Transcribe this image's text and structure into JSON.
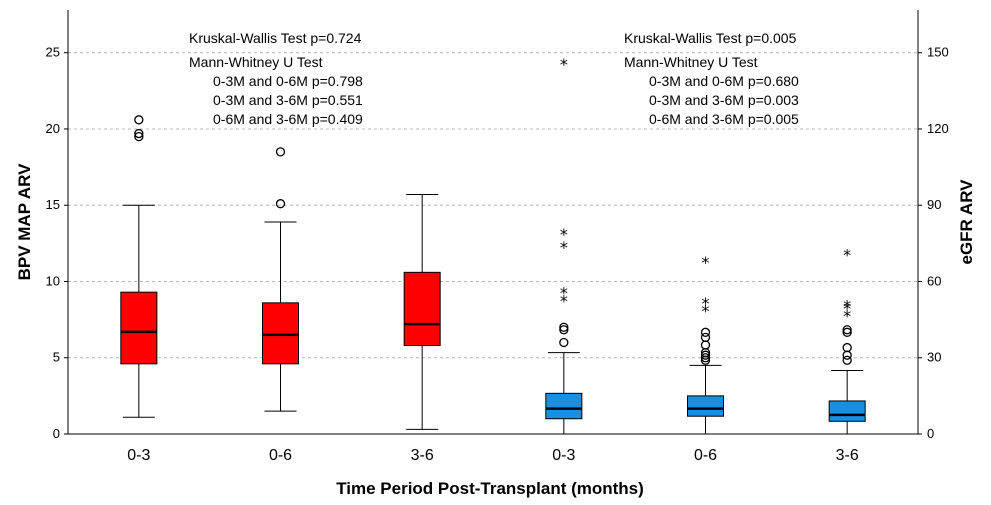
{
  "chart_data": {
    "type": "box",
    "xlabel": "Time Period Post-Transplant (months)",
    "ylabel_left": "BPV MAP ARV",
    "ylabel_right": "eGFR ARV",
    "ylim_left": [
      0,
      27.8
    ],
    "yticks_left": [
      0,
      5,
      10,
      15,
      20,
      25
    ],
    "ylim_right": [
      0,
      166.8
    ],
    "yticks_right": [
      0,
      30,
      60,
      90,
      120,
      150
    ],
    "grid": "horizontal-dashed",
    "categories": [
      "0-3",
      "0-6",
      "3-6",
      "0-3",
      "0-6",
      "3-6"
    ],
    "series": [
      {
        "axis": "left",
        "color": "#ff0000",
        "boxes": [
          {
            "category": "0-3",
            "min": 1.1,
            "q1": 4.6,
            "median": 6.7,
            "q3": 9.3,
            "max": 15.0,
            "outliers": [
              19.5,
              19.7,
              20.6
            ],
            "extremes": []
          },
          {
            "category": "0-6",
            "min": 1.5,
            "q1": 4.6,
            "median": 6.5,
            "q3": 8.6,
            "max": 13.9,
            "outliers": [
              15.1,
              18.5
            ],
            "extremes": []
          },
          {
            "category": "3-6",
            "min": 0.3,
            "q1": 5.8,
            "median": 7.2,
            "q3": 10.6,
            "max": 15.7,
            "outliers": [],
            "extremes": []
          }
        ]
      },
      {
        "axis": "right",
        "color": "#1a8fe0",
        "boxes": [
          {
            "category": "0-3",
            "min": 0,
            "q1": 6.0,
            "median": 10.0,
            "q3": 16.0,
            "max": 32.0,
            "outliers": [
              36,
              41,
              42
            ],
            "extremes": [
              53,
              56,
              74,
              79,
              146
            ]
          },
          {
            "category": "0-6",
            "min": 0,
            "q1": 7.0,
            "median": 10.0,
            "q3": 15.0,
            "max": 27.0,
            "outliers": [
              29,
              30,
              31,
              32,
              35,
              38,
              40
            ],
            "extremes": [
              49,
              52,
              68
            ]
          },
          {
            "category": "3-6",
            "min": 0,
            "q1": 5.0,
            "median": 7.5,
            "q3": 13.0,
            "max": 25.0,
            "outliers": [
              29,
              31,
              34,
              40,
              41
            ],
            "extremes": [
              47,
              50,
              51,
              71
            ]
          }
        ]
      }
    ],
    "annotations": {
      "left": [
        "Kruskal-Wallis Test  p=0.724",
        "Mann-Whitney U Test",
        "0-3M and 0-6M p=0.798",
        "0-3M and 3-6M p=0.551",
        "0-6M and 3-6M p=0.409"
      ],
      "right": [
        "Kruskal-Wallis Test p=0.005",
        "Mann-Whitney U Test",
        "0-3M and 0-6M p=0.680",
        "0-3M and 3-6M p=0.003",
        "0-6M and 3-6M p=0.005"
      ]
    }
  }
}
